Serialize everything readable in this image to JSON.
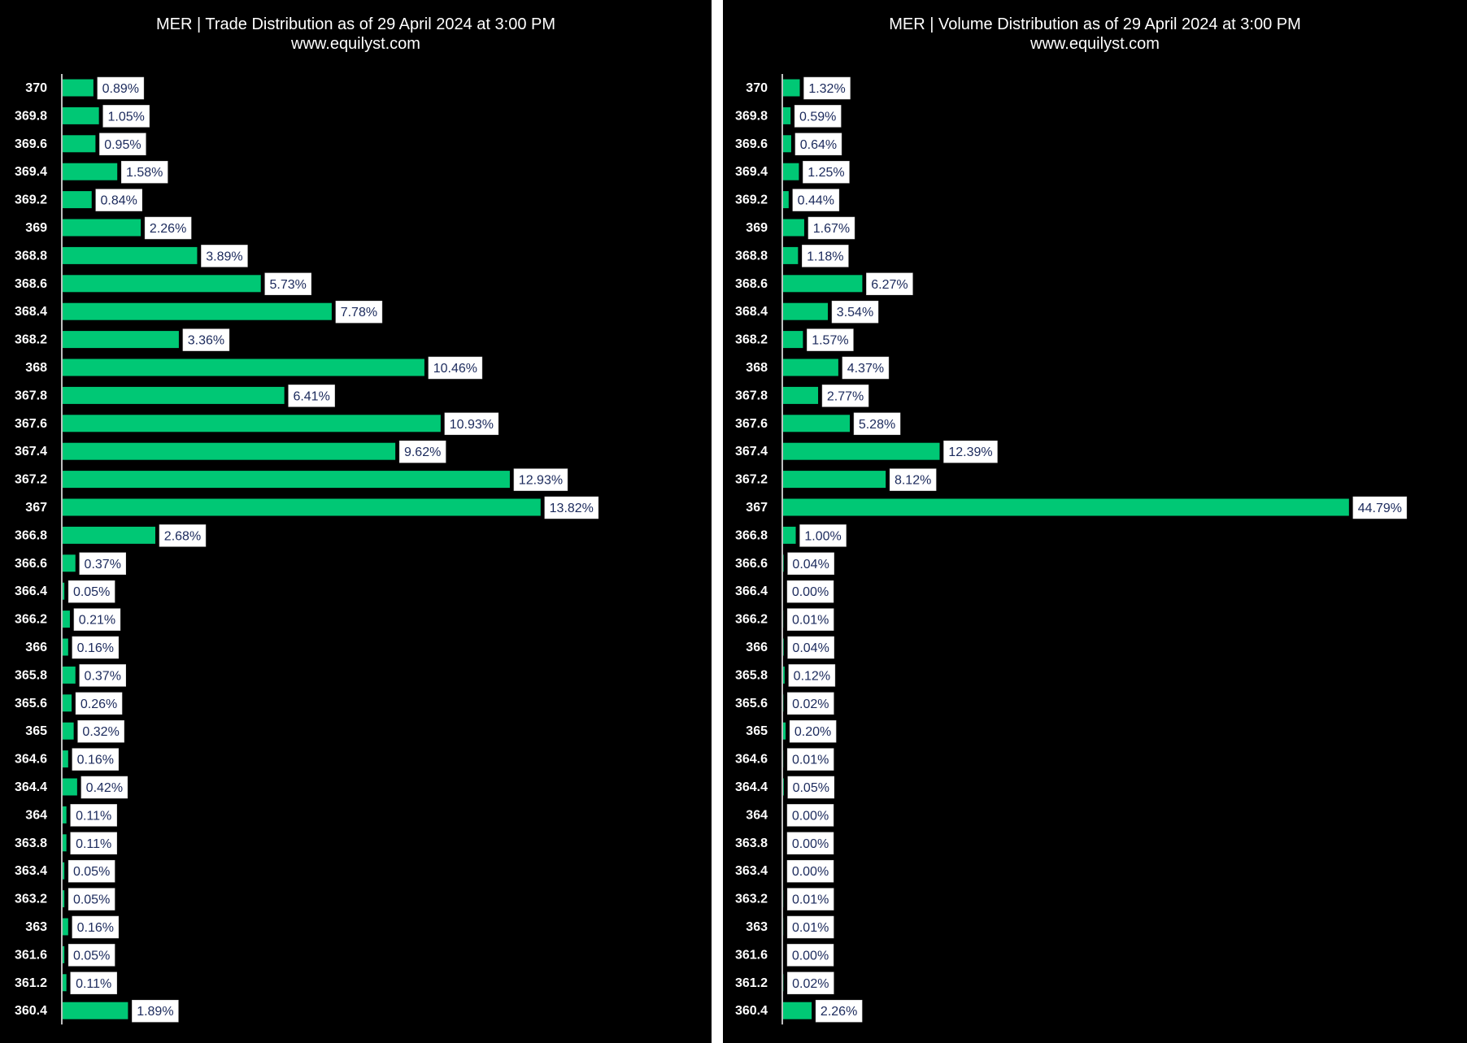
{
  "colors": {
    "background": "#000000",
    "bar": "#00c875",
    "label_box": "#ffffff",
    "label_text": "#1b2a5c",
    "text": "#ffffff"
  },
  "chart_data": [
    {
      "type": "bar",
      "orientation": "horizontal",
      "title": "MER | Trade Distribution as of 29 April 2024 at 3:00 PM",
      "subtitle": "www.equilyst.com",
      "categories": [
        "370",
        "369.8",
        "369.6",
        "369.4",
        "369.2",
        "369",
        "368.8",
        "368.6",
        "368.4",
        "368.2",
        "368",
        "367.8",
        "367.6",
        "367.4",
        "367.2",
        "367",
        "366.8",
        "366.6",
        "366.4",
        "366.2",
        "366",
        "365.8",
        "365.6",
        "365",
        "364.6",
        "364.4",
        "364",
        "363.8",
        "363.4",
        "363.2",
        "363",
        "361.6",
        "361.2",
        "360.4"
      ],
      "values": [
        0.89,
        1.05,
        0.95,
        1.58,
        0.84,
        2.26,
        3.89,
        5.73,
        7.78,
        3.36,
        10.46,
        6.41,
        10.93,
        9.62,
        12.93,
        13.82,
        2.68,
        0.37,
        0.05,
        0.21,
        0.16,
        0.37,
        0.26,
        0.32,
        0.16,
        0.42,
        0.11,
        0.11,
        0.05,
        0.05,
        0.16,
        0.05,
        0.11,
        1.89
      ],
      "labels": [
        "0.89%",
        "1.05%",
        "0.95%",
        "1.58%",
        "0.84%",
        "2.26%",
        "3.89%",
        "5.73%",
        "7.78%",
        "3.36%",
        "10.46%",
        "6.41%",
        "10.93%",
        "9.62%",
        "12.93%",
        "13.82%",
        "2.68%",
        "0.37%",
        "0.05%",
        "0.21%",
        "0.16%",
        "0.37%",
        "0.26%",
        "0.32%",
        "0.16%",
        "0.42%",
        "0.11%",
        "0.11%",
        "0.05%",
        "0.05%",
        "0.16%",
        "0.05%",
        "0.11%",
        "1.89%"
      ],
      "xlim": [
        0,
        15.8
      ]
    },
    {
      "type": "bar",
      "orientation": "horizontal",
      "title": "MER | Volume Distribution as of 29 April 2024 at 3:00 PM",
      "subtitle": "www.equilyst.com",
      "categories": [
        "370",
        "369.8",
        "369.6",
        "369.4",
        "369.2",
        "369",
        "368.8",
        "368.6",
        "368.4",
        "368.2",
        "368",
        "367.8",
        "367.6",
        "367.4",
        "367.2",
        "367",
        "366.8",
        "366.6",
        "366.4",
        "366.2",
        "366",
        "365.8",
        "365.6",
        "365",
        "364.6",
        "364.4",
        "364",
        "363.8",
        "363.4",
        "363.2",
        "363",
        "361.6",
        "361.2",
        "360.4"
      ],
      "values": [
        1.32,
        0.59,
        0.64,
        1.25,
        0.44,
        1.67,
        1.18,
        6.27,
        3.54,
        1.57,
        4.37,
        2.77,
        5.28,
        12.39,
        8.12,
        44.79,
        1.0,
        0.04,
        0.0,
        0.01,
        0.04,
        0.12,
        0.02,
        0.2,
        0.01,
        0.05,
        0.0,
        0.0,
        0.0,
        0.01,
        0.01,
        0.0,
        0.02,
        2.26
      ],
      "labels": [
        "1.32%",
        "0.59%",
        "0.64%",
        "1.25%",
        "0.44%",
        "1.67%",
        "1.18%",
        "6.27%",
        "3.54%",
        "1.57%",
        "4.37%",
        "2.77%",
        "5.28%",
        "12.39%",
        "8.12%",
        "44.79%",
        "1.00%",
        "0.04%",
        "0.00%",
        "0.01%",
        "0.04%",
        "0.12%",
        "0.02%",
        "0.20%",
        "0.01%",
        "0.05%",
        "0.00%",
        "0.00%",
        "0.00%",
        "0.01%",
        "0.01%",
        "0.00%",
        "0.02%",
        "2.26%"
      ],
      "xlim": [
        0,
        44.8
      ]
    }
  ]
}
